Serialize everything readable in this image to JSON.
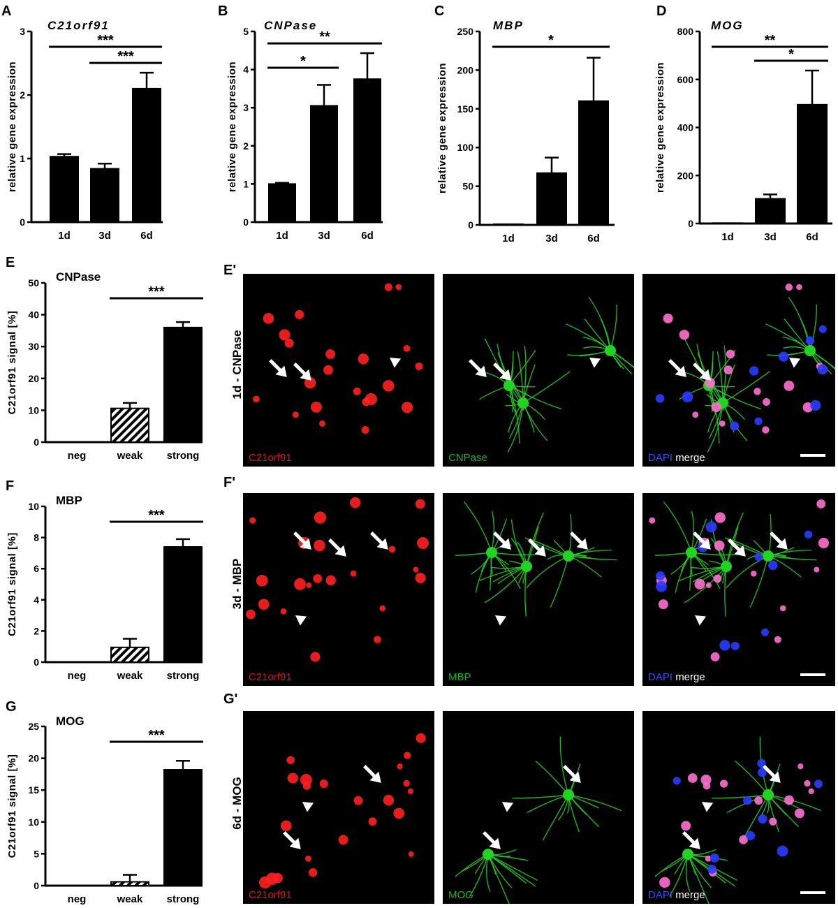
{
  "chart_data": [
    {
      "panel": "A",
      "type": "bar",
      "title": "C21orf91",
      "ylabel": "relative gene expression",
      "categories": [
        "1d",
        "3d",
        "6d"
      ],
      "values": [
        1.03,
        0.84,
        2.1
      ],
      "errors": [
        0.04,
        0.08,
        0.25
      ],
      "ylim": [
        0,
        3
      ],
      "yticks": [
        0,
        1,
        2,
        3
      ],
      "significance": [
        {
          "from": 0,
          "to": 2,
          "label": "***"
        },
        {
          "from": 1,
          "to": 2,
          "label": "***"
        }
      ]
    },
    {
      "panel": "B",
      "type": "bar",
      "title": "CNPase",
      "ylabel": "relative gene expression",
      "categories": [
        "1d",
        "3d",
        "6d"
      ],
      "values": [
        1.0,
        3.05,
        3.75
      ],
      "errors": [
        0.03,
        0.55,
        0.68
      ],
      "ylim": [
        0,
        5
      ],
      "yticks": [
        0,
        1,
        2,
        3,
        4,
        5
      ],
      "significance": [
        {
          "from": 0,
          "to": 1,
          "label": "*"
        },
        {
          "from": 0,
          "to": 2,
          "label": "**"
        }
      ]
    },
    {
      "panel": "C",
      "type": "bar",
      "title": "MBP",
      "ylabel": "relative gene expression",
      "categories": [
        "1d",
        "3d",
        "6d"
      ],
      "values": [
        1,
        67,
        160
      ],
      "errors": [
        0,
        20,
        56
      ],
      "ylim": [
        0,
        250
      ],
      "yticks": [
        0,
        50,
        100,
        150,
        200,
        250
      ],
      "significance": [
        {
          "from": 0,
          "to": 2,
          "label": "*"
        }
      ]
    },
    {
      "panel": "D",
      "type": "bar",
      "title": "MOG",
      "ylabel": "relative gene expression",
      "categories": [
        "1d",
        "3d",
        "6d"
      ],
      "values": [
        2,
        103,
        495
      ],
      "errors": [
        0,
        18,
        142
      ],
      "ylim": [
        0,
        800
      ],
      "yticks": [
        0,
        200,
        400,
        600,
        800
      ],
      "significance": [
        {
          "from": 0,
          "to": 2,
          "label": "**"
        },
        {
          "from": 1,
          "to": 2,
          "label": "*"
        }
      ]
    },
    {
      "panel": "E",
      "type": "bar",
      "title": "CNPase",
      "ylabel": "C21orf91 signal [%]",
      "categories": [
        "neg",
        "weak",
        "strong"
      ],
      "values": [
        0,
        10.6,
        36
      ],
      "errors": [
        0,
        1.7,
        1.7
      ],
      "patterns": [
        "solid",
        "hatch",
        "solid"
      ],
      "ylim": [
        0,
        50
      ],
      "yticks": [
        0,
        10,
        20,
        30,
        40,
        50
      ],
      "significance": [
        {
          "from": 1,
          "to": 2,
          "label": "***"
        }
      ]
    },
    {
      "panel": "F",
      "type": "bar",
      "title": "MBP",
      "ylabel": "C21orf91 signal [%]",
      "categories": [
        "neg",
        "weak",
        "strong"
      ],
      "values": [
        0,
        0.95,
        7.4
      ],
      "errors": [
        0,
        0.55,
        0.5
      ],
      "patterns": [
        "solid",
        "hatch",
        "solid"
      ],
      "ylim": [
        0,
        10
      ],
      "yticks": [
        0,
        2,
        4,
        6,
        8,
        10
      ],
      "significance": [
        {
          "from": 1,
          "to": 2,
          "label": "***"
        }
      ]
    },
    {
      "panel": "G",
      "type": "bar",
      "title": "MOG",
      "ylabel": "C21orf91 signal [%]",
      "categories": [
        "neg",
        "weak",
        "strong"
      ],
      "values": [
        0,
        0.6,
        18.2
      ],
      "errors": [
        0,
        1.1,
        1.4
      ],
      "patterns": [
        "solid",
        "hatch",
        "solid"
      ],
      "ylim": [
        0,
        25
      ],
      "yticks": [
        0,
        5,
        10,
        15,
        20,
        25
      ],
      "significance": [
        {
          "from": 1,
          "to": 2,
          "label": "***"
        }
      ]
    }
  ],
  "micrographs": [
    {
      "panel": "E'",
      "row_label": "1d - CNPase",
      "channels": [
        {
          "label": "C21orf91",
          "color": "red"
        },
        {
          "label": "CNPase",
          "color": "green"
        },
        {
          "label_a": "DAPI",
          "label_b": "merge",
          "color": "merge"
        }
      ]
    },
    {
      "panel": "F'",
      "row_label": "3d - MBP",
      "channels": [
        {
          "label": "C21orf91",
          "color": "red"
        },
        {
          "label": "MBP",
          "color": "green"
        },
        {
          "label_a": "DAPI",
          "label_b": "merge",
          "color": "merge"
        }
      ]
    },
    {
      "panel": "G'",
      "row_label": "6d - MOG",
      "channels": [
        {
          "label": "C21orf91",
          "color": "red"
        },
        {
          "label": "MOG",
          "color": "green"
        },
        {
          "label_a": "DAPI",
          "label_b": "merge",
          "color": "merge"
        }
      ]
    }
  ],
  "colors": {
    "bar": "#000000",
    "red_channel": "#ff2020",
    "green_channel": "#22d322",
    "dapi": "#2a3cff"
  }
}
